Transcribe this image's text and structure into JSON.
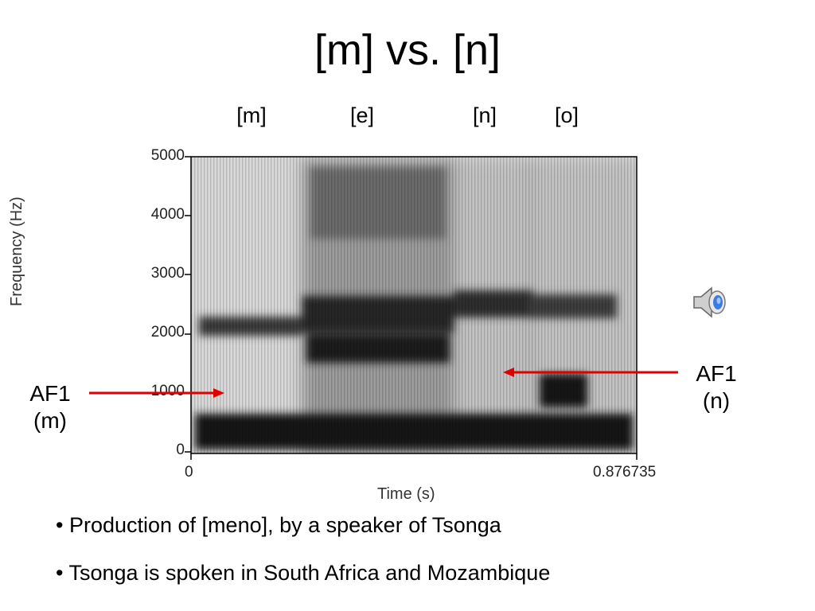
{
  "title": "[m] vs. [n]",
  "segments": [
    "[m]",
    "[e]",
    "[n]",
    "[o]"
  ],
  "spectrogram": {
    "y_ticks": [
      "5000",
      "4000",
      "3000",
      "2000",
      "1000",
      "0"
    ],
    "y_label": "Frequency (Hz)",
    "x_start": "0",
    "x_end": "0.876735",
    "x_label": "Time (s)"
  },
  "annotations": {
    "left": {
      "line1": "AF1",
      "line2": "(m)"
    },
    "right": {
      "line1": "AF1",
      "line2": "(n)"
    },
    "arrow_color": "#e00000"
  },
  "bullets": [
    "• Production of [meno], by a speaker of Tsonga",
    "• Tsonga is spoken in South Africa and Mozambique"
  ],
  "speaker_icon": "speaker-icon"
}
